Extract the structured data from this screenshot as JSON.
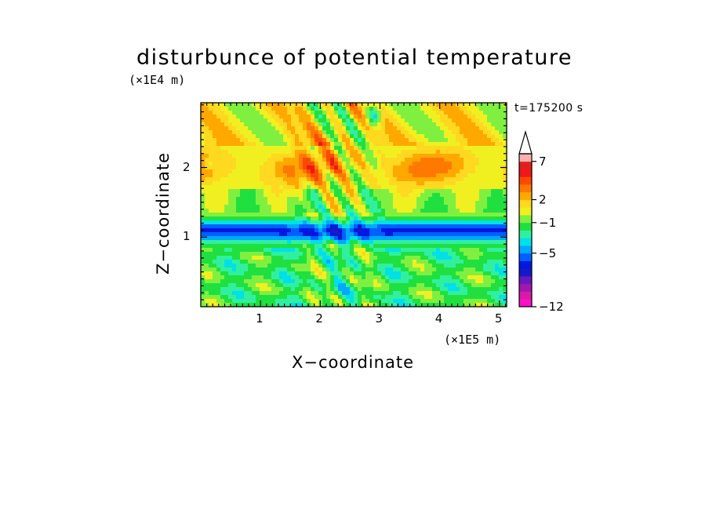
{
  "chart_data": {
    "type": "heatmap",
    "title": "disturbunce of potential temperature",
    "xlabel": "X−coordinate",
    "ylabel": "Z−coordinate",
    "x_unit": "(×1E5 m)",
    "y_unit": "(×1E4 m)",
    "time_label": "t=175200 s",
    "xlim": [
      0,
      5.12
    ],
    "ylim": [
      0,
      2.93
    ],
    "x_ticks": [
      1,
      2,
      3,
      4,
      5
    ],
    "x_tick_labels": [
      "1",
      "2",
      "3",
      "4",
      "5"
    ],
    "y_ticks": [
      1,
      2
    ],
    "y_tick_labels": [
      "1",
      "2"
    ],
    "colorbar": {
      "levels": [
        -12,
        -11,
        -10,
        -9,
        -8,
        -7,
        -6,
        -5,
        -4,
        -3,
        -2,
        -1,
        0,
        1,
        2,
        3,
        4,
        5,
        6,
        7,
        8,
        9
      ],
      "colors": [
        "#ff10c8",
        "#d81aa8",
        "#a018b0",
        "#6818c0",
        "#1818c8",
        "#0018e0",
        "#0060ff",
        "#00a8ff",
        "#00e0e8",
        "#30f0a0",
        "#20e040",
        "#80f040",
        "#f0f020",
        "#ffd820",
        "#ffa800",
        "#ff7800",
        "#ff4800",
        "#f01818",
        "#e02020",
        "#ffb0b0",
        "#ffd0d0"
      ],
      "labeled_ticks": [
        -12,
        -5,
        -1,
        2,
        7
      ],
      "labeled_tick_text": [
        "−12",
        "−5",
        "−1",
        "2",
        "7"
      ],
      "extend": "max"
    },
    "field_description_levels": {
      "upper_layer_range": [
        -1,
        6
      ],
      "lower_layer_range": [
        -5,
        2
      ],
      "dark_band_z_range": [
        0.85,
        1.35
      ],
      "dark_band_value": -5
    }
  }
}
